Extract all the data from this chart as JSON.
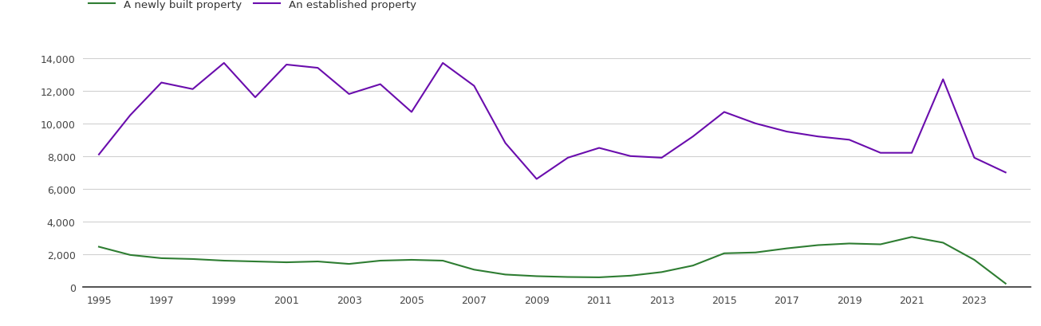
{
  "years": [
    1995,
    1996,
    1997,
    1998,
    1999,
    2000,
    2001,
    2002,
    2003,
    2004,
    2005,
    2006,
    2007,
    2008,
    2009,
    2010,
    2011,
    2012,
    2013,
    2014,
    2015,
    2016,
    2017,
    2018,
    2019,
    2020,
    2021,
    2022,
    2023,
    2024
  ],
  "newly_built": [
    2450,
    1950,
    1750,
    1700,
    1600,
    1550,
    1500,
    1550,
    1400,
    1600,
    1650,
    1600,
    1050,
    750,
    650,
    600,
    580,
    680,
    900,
    1300,
    2050,
    2100,
    2350,
    2550,
    2650,
    2600,
    3050,
    2700,
    1650,
    200
  ],
  "established": [
    8100,
    10500,
    12500,
    12100,
    13700,
    11600,
    13600,
    13400,
    11800,
    12400,
    10700,
    13700,
    12300,
    8800,
    6600,
    7900,
    8500,
    8000,
    7900,
    9200,
    10700,
    10000,
    9500,
    9200,
    9000,
    8200,
    8200,
    12700,
    7900,
    7000
  ],
  "newly_built_color": "#2e7d32",
  "established_color": "#6a0dad",
  "legend_labels": [
    "A newly built property",
    "An established property"
  ],
  "ylim": [
    0,
    14000
  ],
  "yticks": [
    0,
    2000,
    4000,
    6000,
    8000,
    10000,
    12000,
    14000
  ],
  "xtick_years": [
    1995,
    1997,
    1999,
    2001,
    2003,
    2005,
    2007,
    2009,
    2011,
    2013,
    2015,
    2017,
    2019,
    2021,
    2023
  ],
  "background_color": "#ffffff",
  "grid_color": "#d0d0d0",
  "line_width": 1.5
}
